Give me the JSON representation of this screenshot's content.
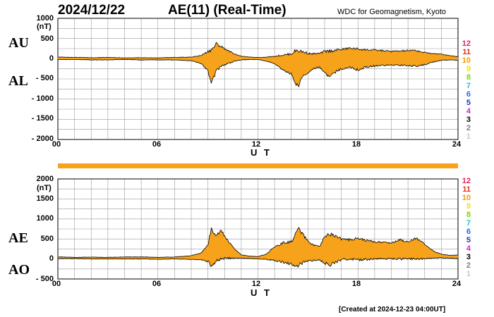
{
  "header": {
    "date": "2024/12/22",
    "title": "AE(11) (Real-Time)",
    "source": "WDC for Geomagnetism, Kyoto"
  },
  "footer": {
    "created": "[Created at 2024-12-23 04:00UT]"
  },
  "colors": {
    "fill": "#F7A21B",
    "line": "#000000",
    "grid": "#9A9A9A",
    "bar": "#F7A21B"
  },
  "legend": {
    "items": [
      {
        "label": "12",
        "color": "#E0245E"
      },
      {
        "label": "11",
        "color": "#E0301E"
      },
      {
        "label": "10",
        "color": "#F29A00"
      },
      {
        "label": "9",
        "color": "#F2E200"
      },
      {
        "label": "8",
        "color": "#7FD400"
      },
      {
        "label": "7",
        "color": "#18C7C7"
      },
      {
        "label": "6",
        "color": "#1E6BFF"
      },
      {
        "label": "5",
        "color": "#2B2BD6"
      },
      {
        "label": "4",
        "color": "#D21FD2"
      },
      {
        "label": "3",
        "color": "#000000"
      },
      {
        "label": "2",
        "color": "#808080"
      },
      {
        "label": "1",
        "color": "#C8C8C8"
      }
    ]
  },
  "chart_data": [
    {
      "type": "area",
      "title": "AU / AL",
      "series_upper_name": "AU",
      "series_lower_name": "AL",
      "xlabel": "U T",
      "unit": "(nT)",
      "xlim": [
        0,
        24
      ],
      "ylim": [
        -2000,
        1000
      ],
      "x_ticks": [
        "00",
        "06",
        "12",
        "18",
        "24"
      ],
      "y_ticks": [
        "1000",
        "500",
        "0",
        "- 500",
        "- 1000",
        "- 1500",
        "- 2000"
      ],
      "keypoints_upper": [
        [
          0,
          40
        ],
        [
          1,
          35
        ],
        [
          2,
          25
        ],
        [
          3,
          30
        ],
        [
          4,
          20
        ],
        [
          5,
          25
        ],
        [
          6,
          20
        ],
        [
          7,
          30
        ],
        [
          8,
          40
        ],
        [
          8.6,
          80
        ],
        [
          9,
          180
        ],
        [
          9.3,
          250
        ],
        [
          9.5,
          370
        ],
        [
          9.8,
          300
        ],
        [
          10.2,
          200
        ],
        [
          10.6,
          120
        ],
        [
          11,
          60
        ],
        [
          11.5,
          40
        ],
        [
          12,
          30
        ],
        [
          12.5,
          40
        ],
        [
          13,
          60
        ],
        [
          13.5,
          90
        ],
        [
          14,
          120
        ],
        [
          14.3,
          210
        ],
        [
          14.7,
          170
        ],
        [
          15.2,
          120
        ],
        [
          15.7,
          130
        ],
        [
          16,
          180
        ],
        [
          16.5,
          200
        ],
        [
          17,
          230
        ],
        [
          17.5,
          260
        ],
        [
          18,
          240
        ],
        [
          18.5,
          220
        ],
        [
          19,
          210
        ],
        [
          19.5,
          200
        ],
        [
          20,
          180
        ],
        [
          20.5,
          190
        ],
        [
          21,
          200
        ],
        [
          21.5,
          200
        ],
        [
          22,
          150
        ],
        [
          22.5,
          130
        ],
        [
          23,
          110
        ],
        [
          23.5,
          80
        ],
        [
          24,
          50
        ]
      ],
      "keypoints_lower": [
        [
          0,
          -20
        ],
        [
          1,
          -20
        ],
        [
          2,
          -30
        ],
        [
          3,
          -30
        ],
        [
          4,
          -20
        ],
        [
          5,
          -30
        ],
        [
          6,
          -30
        ],
        [
          7,
          -30
        ],
        [
          8,
          -50
        ],
        [
          8.6,
          -120
        ],
        [
          9,
          -300
        ],
        [
          9.2,
          -620
        ],
        [
          9.5,
          -300
        ],
        [
          9.8,
          -180
        ],
        [
          10.2,
          -120
        ],
        [
          10.6,
          -60
        ],
        [
          11,
          -30
        ],
        [
          11.5,
          -20
        ],
        [
          12,
          -20
        ],
        [
          12.5,
          -60
        ],
        [
          13,
          -120
        ],
        [
          13.5,
          -280
        ],
        [
          14,
          -380
        ],
        [
          14.2,
          -560
        ],
        [
          14.4,
          -700
        ],
        [
          14.7,
          -420
        ],
        [
          15,
          -360
        ],
        [
          15.3,
          -250
        ],
        [
          15.7,
          -200
        ],
        [
          16,
          -360
        ],
        [
          16.3,
          -450
        ],
        [
          16.7,
          -320
        ],
        [
          17,
          -250
        ],
        [
          17.5,
          -200
        ],
        [
          18,
          -280
        ],
        [
          18.5,
          -200
        ],
        [
          19,
          -180
        ],
        [
          19.5,
          -170
        ],
        [
          20,
          -150
        ],
        [
          20.5,
          -160
        ],
        [
          21,
          -170
        ],
        [
          21.5,
          -180
        ],
        [
          22,
          -150
        ],
        [
          22.5,
          -80
        ],
        [
          23,
          -40
        ],
        [
          23.5,
          -30
        ],
        [
          24,
          -40
        ]
      ]
    },
    {
      "type": "area",
      "title": "AE / AO",
      "series_upper_name": "AE",
      "series_lower_name": "AO",
      "xlabel": "U T",
      "unit": "(nT)",
      "xlim": [
        0,
        24
      ],
      "ylim": [
        -500,
        2000
      ],
      "x_ticks": [
        "00",
        "06",
        "12",
        "18",
        "24"
      ],
      "y_ticks": [
        "2000",
        "1500",
        "1000",
        "500",
        "0",
        "- 500"
      ],
      "keypoints_upper": [
        [
          0,
          50
        ],
        [
          1,
          40
        ],
        [
          2,
          45
        ],
        [
          3,
          40
        ],
        [
          4,
          50
        ],
        [
          5,
          50
        ],
        [
          6,
          40
        ],
        [
          7,
          50
        ],
        [
          8,
          80
        ],
        [
          8.6,
          150
        ],
        [
          9,
          350
        ],
        [
          9.2,
          750
        ],
        [
          9.5,
          600
        ],
        [
          9.8,
          700
        ],
        [
          10.2,
          450
        ],
        [
          10.6,
          250
        ],
        [
          11,
          100
        ],
        [
          11.5,
          70
        ],
        [
          12,
          60
        ],
        [
          12.5,
          120
        ],
        [
          13,
          300
        ],
        [
          13.5,
          400
        ],
        [
          14,
          430
        ],
        [
          14.2,
          560
        ],
        [
          14.4,
          770
        ],
        [
          14.7,
          600
        ],
        [
          15,
          450
        ],
        [
          15.3,
          350
        ],
        [
          15.7,
          300
        ],
        [
          16,
          550
        ],
        [
          16.3,
          620
        ],
        [
          16.7,
          570
        ],
        [
          17,
          500
        ],
        [
          17.5,
          480
        ],
        [
          18,
          520
        ],
        [
          18.5,
          460
        ],
        [
          19,
          430
        ],
        [
          19.5,
          420
        ],
        [
          20,
          400
        ],
        [
          20.5,
          480
        ],
        [
          21,
          430
        ],
        [
          21.5,
          530
        ],
        [
          22,
          360
        ],
        [
          22.5,
          200
        ],
        [
          23,
          120
        ],
        [
          23.5,
          90
        ],
        [
          24,
          100
        ]
      ],
      "keypoints_lower": [
        [
          0,
          10
        ],
        [
          1,
          10
        ],
        [
          2,
          0
        ],
        [
          3,
          0
        ],
        [
          4,
          0
        ],
        [
          5,
          0
        ],
        [
          6,
          -10
        ],
        [
          7,
          0
        ],
        [
          8,
          -10
        ],
        [
          8.6,
          -20
        ],
        [
          9,
          -60
        ],
        [
          9.2,
          -180
        ],
        [
          9.5,
          -50
        ],
        [
          9.8,
          0
        ],
        [
          10.2,
          20
        ],
        [
          10.6,
          20
        ],
        [
          11,
          20
        ],
        [
          11.5,
          10
        ],
        [
          12,
          0
        ],
        [
          12.5,
          -10
        ],
        [
          13,
          -40
        ],
        [
          13.5,
          -80
        ],
        [
          14,
          -130
        ],
        [
          14.2,
          -180
        ],
        [
          14.4,
          -150
        ],
        [
          14.7,
          -100
        ],
        [
          15,
          -60
        ],
        [
          15.3,
          -40
        ],
        [
          15.7,
          -20
        ],
        [
          16,
          -100
        ],
        [
          16.3,
          -150
        ],
        [
          16.7,
          -80
        ],
        [
          17,
          -20
        ],
        [
          17.5,
          0
        ],
        [
          18,
          -30
        ],
        [
          18.5,
          -10
        ],
        [
          19,
          0
        ],
        [
          19.5,
          0
        ],
        [
          20,
          0
        ],
        [
          20.5,
          0
        ],
        [
          21,
          0
        ],
        [
          21.5,
          0
        ],
        [
          22,
          0
        ],
        [
          22.5,
          20
        ],
        [
          23,
          30
        ],
        [
          23.5,
          20
        ],
        [
          24,
          10
        ]
      ]
    }
  ]
}
